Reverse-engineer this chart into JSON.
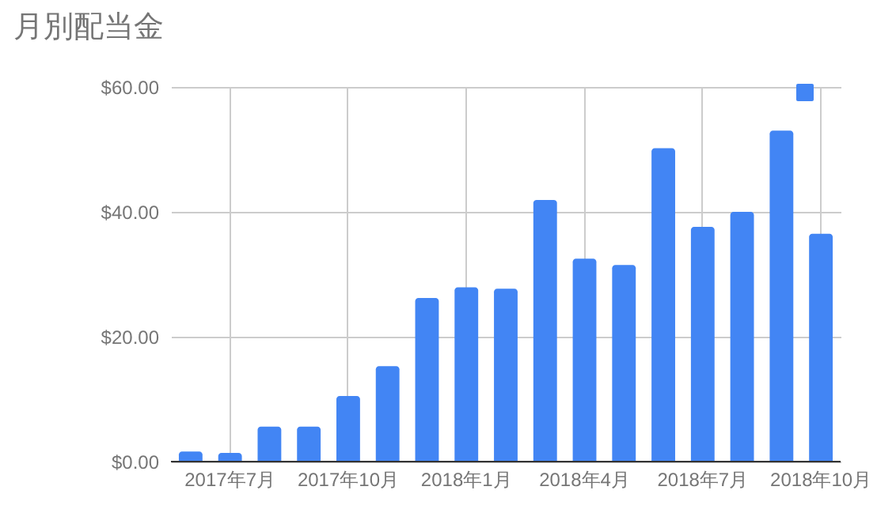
{
  "chart_data": {
    "type": "bar",
    "title": "月別配当金",
    "categories": [
      null,
      "2017年7月",
      null,
      null,
      "2017年10月",
      null,
      null,
      "2018年1月",
      null,
      null,
      "2018年4月",
      null,
      null,
      "2018年7月",
      null,
      null,
      "2018年10月"
    ],
    "series": [
      {
        "color": "#4285f4",
        "values": [
          1.6,
          1.4,
          5.6,
          5.6,
          10.5,
          15.3,
          26.2,
          27.9,
          27.7,
          41.9,
          32.5,
          31.5,
          50.2,
          37.6,
          40.0,
          53.0,
          36.5
        ]
      }
    ],
    "ylim": [
      0,
      60
    ],
    "yticks": [
      {
        "value": 0,
        "label": "$0.00"
      },
      {
        "value": 20,
        "label": "$20.00"
      },
      {
        "value": 40,
        "label": "$40.00"
      },
      {
        "value": 60,
        "label": "$60.00"
      }
    ],
    "grid": true
  }
}
